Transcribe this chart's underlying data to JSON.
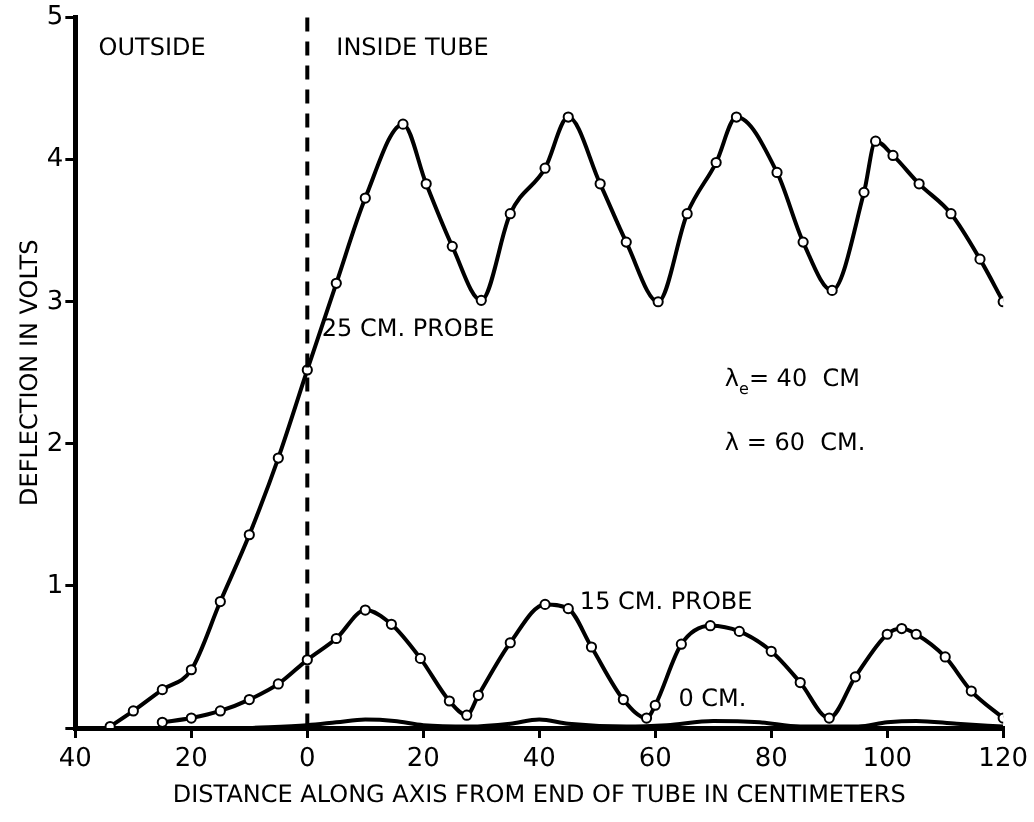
{
  "chart_data": {
    "type": "line",
    "xlabel": "DISTANCE ALONG AXIS FROM END OF TUBE IN CENTIMETERS",
    "ylabel": "DEFLECTION IN VOLTS",
    "xlim": [
      -40,
      120
    ],
    "xticks": [
      {
        "value": -40,
        "label": "40"
      },
      {
        "value": -20,
        "label": "20"
      },
      0,
      20,
      40,
      60,
      80,
      100,
      120
    ],
    "ylim": [
      0,
      5
    ],
    "yticks": [
      {
        "value": 0,
        "label": null
      },
      1,
      2,
      3,
      4,
      5
    ],
    "grid": false,
    "legend": false,
    "marker": "circle",
    "line_style": "solid",
    "ref_lines": [
      {
        "axis": "x",
        "value": 0,
        "line_style": "dashed",
        "color": "#000000"
      }
    ],
    "annotations": [
      "OUTSIDE",
      "INSIDE TUBE",
      "λ$_{e}$= 40  CM",
      "λ = 60  CM."
    ],
    "series": [
      {
        "name": "25 CM. PROBE",
        "color": "#000000",
        "x": [
          -34,
          -30,
          -25,
          -20,
          -15,
          -10,
          -5,
          0,
          5,
          10,
          16.5,
          20.5,
          25,
          30,
          35,
          41,
          45,
          50.5,
          55,
          60.5,
          65.5,
          70.5,
          74,
          81,
          85.5,
          90.5,
          96,
          98,
          101,
          105.5,
          111,
          116,
          120
        ],
        "values": [
          0.01,
          0.12,
          0.27,
          0.41,
          0.89,
          1.36,
          1.9,
          2.52,
          3.13,
          3.73,
          4.25,
          3.83,
          3.39,
          3.01,
          3.62,
          3.94,
          4.3,
          3.83,
          3.42,
          3.0,
          3.62,
          3.98,
          4.3,
          3.91,
          3.42,
          3.08,
          3.77,
          4.13,
          4.03,
          3.83,
          3.62,
          3.3,
          3.0
        ]
      },
      {
        "name": "15 CM. PROBE",
        "color": "#000000",
        "x": [
          -25,
          -20,
          -15,
          -10,
          -5,
          0,
          5,
          10,
          14.5,
          19.5,
          24.5,
          27.5,
          29.5,
          35,
          41,
          45,
          49,
          54.5,
          58.5,
          60,
          64.5,
          69.5,
          74.5,
          80,
          85,
          90,
          94.5,
          100,
          102.5,
          105,
          110,
          114.5,
          120
        ],
        "values": [
          0.04,
          0.07,
          0.12,
          0.2,
          0.31,
          0.48,
          0.63,
          0.83,
          0.73,
          0.49,
          0.19,
          0.09,
          0.23,
          0.6,
          0.87,
          0.84,
          0.57,
          0.2,
          0.07,
          0.16,
          0.59,
          0.72,
          0.68,
          0.54,
          0.32,
          0.07,
          0.36,
          0.66,
          0.7,
          0.66,
          0.5,
          0.26,
          0.07
        ]
      },
      {
        "name": "0 CM.",
        "color": "#000000",
        "marker": "none",
        "x": [
          -10,
          0,
          5,
          10,
          15,
          20,
          28,
          35,
          40,
          45,
          55,
          62,
          70,
          78,
          85,
          95,
          100,
          105,
          112,
          120
        ],
        "values": [
          0.0,
          0.02,
          0.04,
          0.06,
          0.05,
          0.02,
          0.01,
          0.03,
          0.06,
          0.03,
          0.01,
          0.02,
          0.05,
          0.04,
          0.01,
          0.01,
          0.04,
          0.05,
          0.03,
          0.01
        ]
      }
    ]
  }
}
